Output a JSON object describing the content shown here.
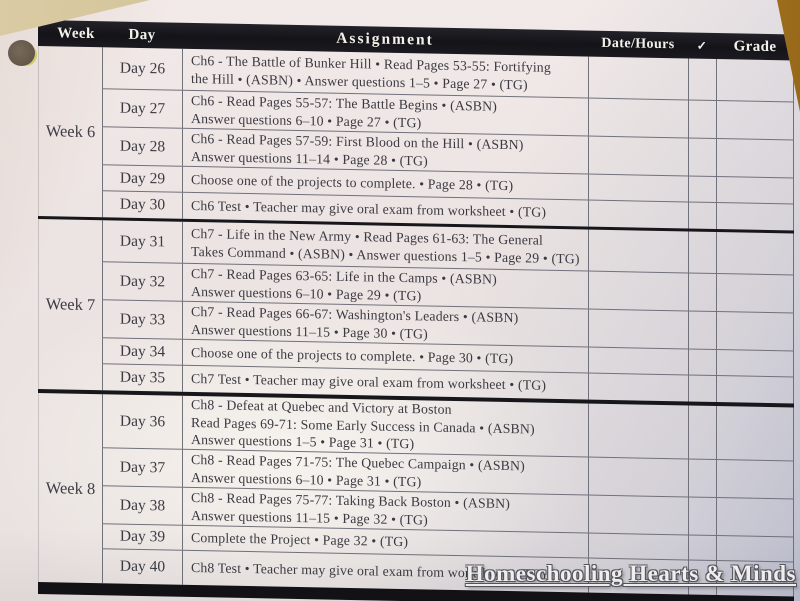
{
  "header": {
    "columns": [
      "Week",
      "Day",
      "Assignment",
      "Date/Hours",
      "✓",
      "Grade"
    ]
  },
  "weeks": [
    {
      "label": "Week 6",
      "rows": [
        {
          "day": "Day 26",
          "assignment": "Ch6 - The Battle of Bunker Hill • Read Pages 53-55: Fortifying\nthe Hill • (ASBN) • Answer questions 1–5 • Page 27 • (TG)"
        },
        {
          "day": "Day 27",
          "assignment": "Ch6 - Read Pages 55-57: The Battle Begins • (ASBN)\nAnswer questions 6–10 • Page 27 • (TG)"
        },
        {
          "day": "Day 28",
          "assignment": "Ch6 - Read Pages 57-59: First Blood on the Hill • (ASBN)\nAnswer questions 11–14 • Page 28 • (TG)"
        },
        {
          "day": "Day 29",
          "assignment": "Choose one of the projects to complete. • Page 28 • (TG)"
        },
        {
          "day": "Day 30",
          "assignment": "Ch6 Test • Teacher may give oral exam from worksheet • (TG)"
        }
      ]
    },
    {
      "label": "Week 7",
      "rows": [
        {
          "day": "Day 31",
          "assignment": "Ch7 - Life in the New Army • Read Pages 61-63: The General\nTakes Command • (ASBN) • Answer questions 1–5 • Page 29 • (TG)"
        },
        {
          "day": "Day 32",
          "assignment": "Ch7 - Read Pages 63-65: Life in the Camps • (ASBN)\nAnswer questions 6–10 • Page 29 • (TG)"
        },
        {
          "day": "Day 33",
          "assignment": "Ch7 - Read Pages 66-67: Washington's Leaders • (ASBN)\nAnswer questions 11–15 • Page 30 • (TG)"
        },
        {
          "day": "Day 34",
          "assignment": "Choose one of the projects to complete. • Page 30 • (TG)"
        },
        {
          "day": "Day 35",
          "assignment": "Ch7 Test • Teacher may give oral exam from worksheet • (TG)"
        }
      ]
    },
    {
      "label": "Week 8",
      "rows": [
        {
          "day": "Day 36",
          "assignment": "Ch8 - Defeat at Quebec and Victory at Boston\nRead Pages 69-71: Some Early Success in Canada • (ASBN)\nAnswer questions 1–5 • Page 31 • (TG)"
        },
        {
          "day": "Day 37",
          "assignment": "Ch8 - Read Pages 71-75: The Quebec Campaign • (ASBN)\nAnswer questions 6–10 • Page 31 • (TG)"
        },
        {
          "day": "Day 38",
          "assignment": "Ch8 - Read Pages 75-77: Taking Back Boston • (ASBN)\nAnswer questions 11–15 • Page 32 • (TG)"
        },
        {
          "day": "Day 39",
          "assignment": "Complete the Project • Page 32 • (TG)"
        },
        {
          "day": "Day 40",
          "assignment": "Ch8 Test • Teacher may give oral exam from worksheet • (TG)"
        }
      ]
    }
  ],
  "watermark": {
    "text": "Homeschooling Hearts & Minds"
  },
  "colors": {
    "desk": "#b98a3e",
    "paper": "#ece4e2",
    "header_bar": "#17161b",
    "ink": "#3b3a42",
    "watermark_fill": "#f7f5f2"
  }
}
